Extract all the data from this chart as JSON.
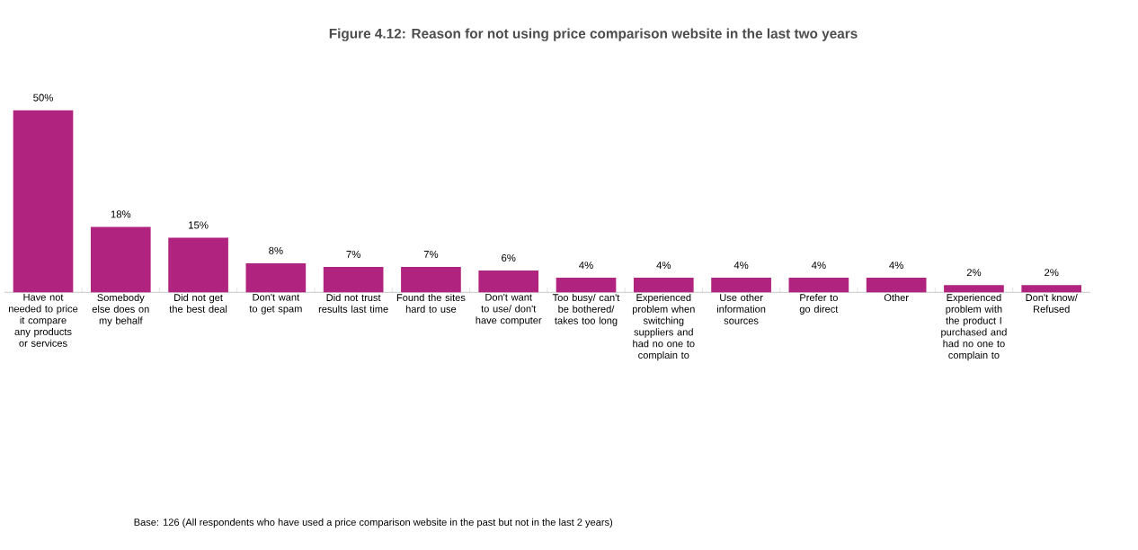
{
  "chart_data": {
    "type": "bar",
    "title": "Figure 4.12: Reason for not using price comparison website in the last two years",
    "categories": [
      "Have not needed to price it compare any products or services",
      "Somebody else does on my behalf",
      "Did not get the best deal",
      "Don't want to get spam",
      "Did not trust results last time",
      "Found the sites hard to use",
      "Don't want to use/ don't have computer",
      "Too busy/ can't be bothered/ takes too long",
      "Experienced problem when switching suppliers and had no one to complain to",
      "Use other information sources",
      "Prefer to go direct",
      "Other",
      "Experienced problem with the product I purchased and had no one to complain to",
      "Don't know/ Refused"
    ],
    "values": [
      50,
      18,
      15,
      8,
      7,
      7,
      6,
      4,
      4,
      4,
      4,
      4,
      2,
      2
    ],
    "value_labels": [
      "50%",
      "18%",
      "15%",
      "8%",
      "7%",
      "7%",
      "6%",
      "4%",
      "4%",
      "4%",
      "4%",
      "4%",
      "2%",
      "2%"
    ],
    "color": "#b0237e",
    "annotations": [
      "Base: 126 (All respondents who have used a price comparison website in the past but not in the last 2 years)"
    ]
  }
}
